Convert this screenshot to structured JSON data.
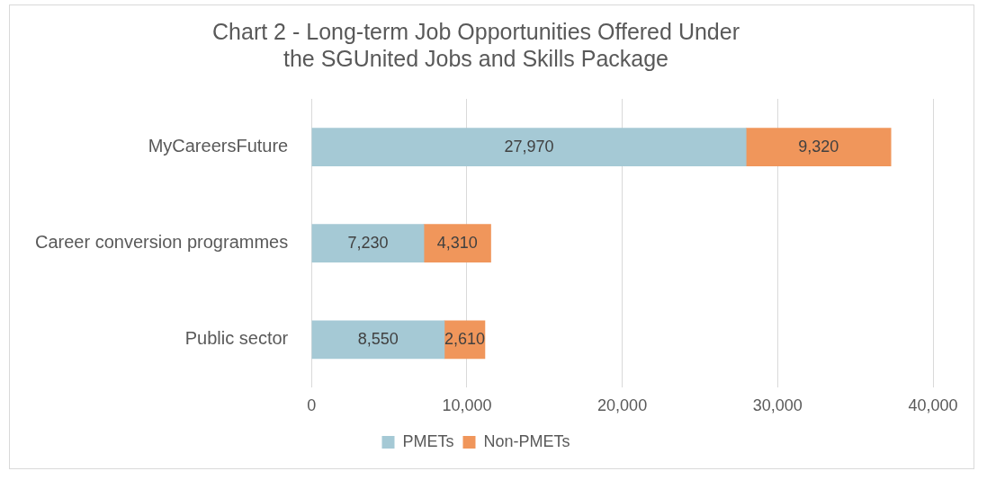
{
  "chart_data": {
    "type": "bar",
    "orientation": "horizontal",
    "stacked": true,
    "title": [
      "Chart 2 - Long-term Job Opportunities Offered Under",
      "the SGUnited Jobs and Skills Package"
    ],
    "categories": [
      "MyCareersFuture",
      "Career conversion programmes",
      "Public sector"
    ],
    "series": [
      {
        "name": "PMETs",
        "color": "#a5c9d5",
        "values": [
          27970,
          7230,
          8550
        ],
        "value_labels": [
          "27,970",
          "7,230",
          "8,550"
        ]
      },
      {
        "name": "Non-PMETs",
        "color": "#f0965b",
        "values": [
          9320,
          4310,
          2610
        ],
        "value_labels": [
          "9,320",
          "4,310",
          "2,610"
        ]
      }
    ],
    "xlim": [
      0,
      40000
    ],
    "xticks": [
      0,
      {
        "value": 10000,
        "label": "10,000"
      },
      {
        "value": 20000,
        "label": "20,000"
      },
      {
        "value": 30000,
        "label": "30,000"
      },
      {
        "value": 40000,
        "label": "40,000"
      }
    ],
    "grid": true,
    "legend": "bottom",
    "data_labels": true
  }
}
